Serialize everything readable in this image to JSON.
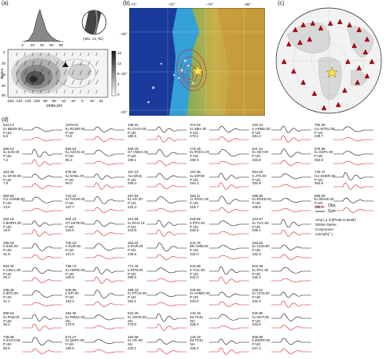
{
  "panels": {
    "a": {
      "label": "(a)",
      "histogram_ticks": [
        "0",
        "20",
        "40",
        "60",
        "80"
      ],
      "beachball_label": "(351, 12, 91)",
      "ylabel": "dip,km",
      "xlabel": "strike,km",
      "x_ticks": [
        "-160",
        "-140",
        "-120",
        "-100",
        "-80",
        "-60",
        "-40",
        "-20",
        "0",
        "20",
        "40"
      ],
      "y_ticks": [
        "0",
        "20",
        "40",
        "60",
        "80"
      ],
      "colorbar_ticks": [
        "0",
        "4",
        "8",
        "12",
        "16"
      ]
    },
    "b": {
      "label": "(b)",
      "lon_ticks": [
        "−74°",
        "−72°",
        "−70°",
        "−68°"
      ],
      "lat_ticks": [
        "−18°",
        "−20°",
        "−22°"
      ]
    },
    "c": {
      "label": "(c)"
    },
    "d": {
      "label": "(d)"
    }
  },
  "legend": {
    "obs": "Obs.",
    "syn": "Syn.",
    "lines": [
      "Amp.( μ m)(Peak-to-peak)",
      "Station Name",
      "Component",
      "Azimuth(° )"
    ]
  },
  "stations": [
    [
      "624.13",
      "IU.BBSR.00",
      "P UD",
      "6.5"
    ],
    [
      "1079.03",
      "IU.RCBR.00",
      "P UD",
      "72.6"
    ],
    [
      "199.32",
      "IU.CASY.00",
      "P UD",
      "180.6"
    ],
    [
      "374.54",
      "IU.SBA.00",
      "P UD",
      "273.1"
    ],
    [
      "432.23",
      "II.ARMD.00",
      "P UD",
      "281.4"
    ],
    [
      "705.39",
      "CU.MTDJ.00",
      "P UD",
      "349.7"
    ],
    [
      "686.61",
      "IU.SJG.00",
      "P UD",
      "7.2"
    ],
    [
      "853.63",
      "IU.ASCN.10",
      "P UD",
      "86.3"
    ],
    [
      "408.30",
      "GT.VNDA.00",
      "P UD",
      "190.1"
    ],
    [
      "175.25",
      "IU.POHA.00",
      "P UD",
      "290.3"
    ],
    [
      "611.44",
      "IU.HKT.00",
      "P UD",
      "333.8"
    ],
    [
      "675.58",
      "IU.SSPA.00",
      "P UD",
      "353.8"
    ],
    [
      "404.39",
      "IU.SFJD.00",
      "P UD",
      "7.8"
    ],
    [
      "878.28",
      "IU.SHEL.00",
      "P UD",
      "90.0"
    ],
    [
      "167.23",
      "AU.MCQ",
      "P UD",
      "206.4"
    ],
    [
      "157.86",
      "IU.KIP.00",
      "P UD",
      "291.3"
    ],
    [
      "654.60",
      "II.JTS.00",
      "P UD",
      "333.8"
    ],
    [
      "740.72",
      "CU.SDDR.00",
      "P UD",
      "353.9"
    ],
    [
      "982.66",
      "CU.ANWB.00",
      "P UD",
      "13.9"
    ],
    [
      "710.24",
      "IU.TSUM.00",
      "P UD",
      "107.7"
    ],
    [
      "257.94",
      "IU.AFI.00",
      "P UD",
      "223.3"
    ],
    [
      "484.11",
      "CI.PASC.00",
      "P UD",
      "319.7"
    ],
    [
      "495.80",
      "IU.RSSD.00",
      "P UD",
      "336.0"
    ],
    [
      "658.59",
      "IU.WAKE.00",
      "P UD",
      "359.4"
    ],
    [
      "262.18",
      "II.BORG.00",
      "P UD",
      "18.9"
    ],
    [
      "504.23",
      "GT.LBTB.00",
      "P UD",
      "115.6"
    ],
    [
      "212.99",
      "IU.RAO.10",
      "P UD",
      "223.8"
    ],
    [
      "520.59",
      "II.PFO.00",
      "P UD",
      "320.5"
    ],
    [
      "324.67",
      "IU.TUC.00",
      "P UD",
      "336.1"
    ],
    [
      "",
      ".",
      ".",
      "."
    ],
    [
      "289.34",
      "II.ESK.00",
      "P UD",
      "31.8"
    ],
    [
      "705.18",
      "II.SUR.00",
      "P UD",
      "121.0"
    ],
    [
      "354.02",
      "II.RAR.00",
      "P UD",
      "236.5"
    ],
    [
      "442.78",
      "BK.CMB.00",
      "P UD",
      "322.0"
    ],
    [
      "263.62",
      "IU.CCM.00",
      "P UD",
      "342.3"
    ],
    [
      "",
      ".",
      ".",
      "."
    ],
    [
      "663.40",
      "II.CMLA.00",
      "P UD",
      "36.3"
    ],
    [
      "788.73",
      "IU.HOPE.00",
      "P UD",
      "160.5"
    ],
    [
      "771.40",
      "II.RPN.00",
      "P UD",
      "250.5"
    ],
    [
      "434.89",
      "II.TUC.00",
      "P UD",
      "322.0"
    ],
    [
      "510.39",
      "IU.FFC.00",
      "P UD",
      "342.3"
    ],
    [
      "",
      ".",
      ".",
      "."
    ],
    [
      "235.45",
      "II.BFO.00",
      "P UD",
      "41.2"
    ],
    [
      "549.86",
      "II.EFI.00",
      "P UD",
      "163.2"
    ],
    [
      "489.43",
      "IU.PTCN.00",
      "P UD",
      "262.1"
    ],
    [
      "430.90",
      "IU.ANMO.00",
      "P UD",
      "323.0"
    ],
    [
      "338.12",
      "IU.CCM.00",
      "P UD",
      "342.3"
    ],
    [
      "",
      ".",
      ".",
      "."
    ],
    [
      "590.52",
      "IU.PAB.00",
      "P UD",
      "45.2"
    ],
    [
      "484.45",
      "IU.PMSA.00",
      "SH",
      "175.9"
    ],
    [
      "622.30",
      "IU.JOHN.00",
      "SH",
      "279.5"
    ],
    [
      "142.43",
      "IM.TX31",
      "SH",
      "326.3"
    ],
    [
      "530.99",
      "IU.WVT.00",
      "P UD",
      "343.6"
    ],
    [
      "",
      ".",
      ".",
      "."
    ],
    [
      "735.08",
      "II.SACV.00",
      "P UD",
      "56.9"
    ],
    [
      "674.27",
      "IU.QSPA.00",
      "P UD",
      "180.0"
    ],
    [
      "184.68",
      "IU.AFI.00",
      "SH",
      "232.1"
    ],
    [
      "142.43",
      "IM.TX31",
      "SH",
      "326.3"
    ],
    [
      "606.98",
      "II.DWPF.00",
      "P UD",
      "347.3"
    ],
    [
      "",
      ".",
      ".",
      "."
    ]
  ],
  "colors": {
    "obs": "#111111",
    "syn": "#d0202a",
    "ocean_deep": "#1a3a9c",
    "ocean_shelf": "#34a0d8",
    "land": "#b5a54a",
    "andes": "#c8a040",
    "station_marker": "#b00010"
  }
}
